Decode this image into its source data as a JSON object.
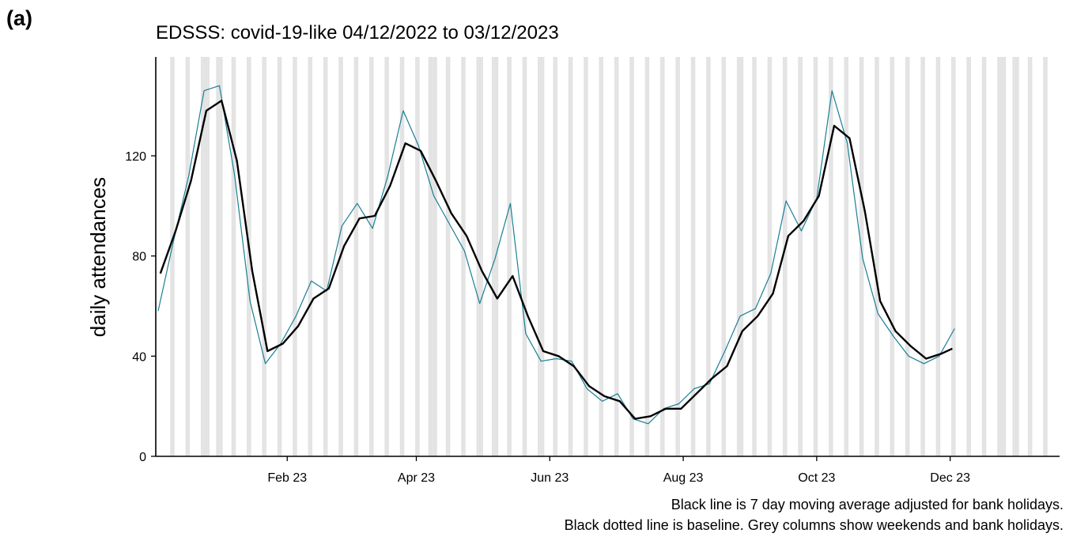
{
  "panel_label": "(a)",
  "chart_data": {
    "type": "line",
    "title": "EDSSS: covid-19-like 04/12/2022 to 03/12/2023",
    "xlabel": "",
    "ylabel": "daily attendances",
    "x_range": [
      "2022-12-04",
      "2024-01-20"
    ],
    "ylim": [
      0,
      150
    ],
    "y_ticks": [
      0,
      40,
      80,
      120
    ],
    "x_ticks": [
      {
        "date": "2023-02-01",
        "label": "Feb 23"
      },
      {
        "date": "2023-04-01",
        "label": "Apr 23"
      },
      {
        "date": "2023-06-01",
        "label": "Jun 23"
      },
      {
        "date": "2023-08-01",
        "label": "Aug 23"
      },
      {
        "date": "2023-10-01",
        "label": "Oct 23"
      },
      {
        "date": "2023-12-01",
        "label": "Dec 23"
      }
    ],
    "grid": false,
    "legend": "none",
    "weekend_columns": {
      "color": "#e3e3e3",
      "first_saturday": "2022-12-10",
      "last_sunday": "2024-01-14"
    },
    "bank_holidays": [
      "2022-12-26",
      "2022-12-27",
      "2023-01-02",
      "2023-04-07",
      "2023-04-10",
      "2023-05-01",
      "2023-05-08",
      "2023-05-29",
      "2023-08-28",
      "2023-12-25",
      "2023-12-26",
      "2024-01-01"
    ],
    "series": [
      {
        "style": "daily",
        "color": "#1a7f96",
        "x": [
          "2022-12-04",
          "2022-12-11",
          "2022-12-18",
          "2022-12-25",
          "2023-01-01",
          "2023-01-08",
          "2023-01-15",
          "2023-01-22",
          "2023-01-29",
          "2023-02-05",
          "2023-02-12",
          "2023-02-19",
          "2023-02-26",
          "2023-03-05",
          "2023-03-12",
          "2023-03-19",
          "2023-03-26",
          "2023-04-02",
          "2023-04-09",
          "2023-04-16",
          "2023-04-23",
          "2023-04-30",
          "2023-05-07",
          "2023-05-14",
          "2023-05-21",
          "2023-05-28",
          "2023-06-04",
          "2023-06-11",
          "2023-06-18",
          "2023-06-25",
          "2023-07-02",
          "2023-07-09",
          "2023-07-16",
          "2023-07-23",
          "2023-07-30",
          "2023-08-06",
          "2023-08-13",
          "2023-08-20",
          "2023-08-27",
          "2023-09-03",
          "2023-09-10",
          "2023-09-17",
          "2023-09-24",
          "2023-10-01",
          "2023-10-08",
          "2023-10-15",
          "2023-10-22",
          "2023-10-29",
          "2023-11-05",
          "2023-11-12",
          "2023-11-19",
          "2023-11-26",
          "2023-12-03"
        ],
        "y": [
          58,
          86,
          112,
          146,
          148,
          112,
          62,
          37,
          45,
          56,
          70,
          66,
          92,
          101,
          91,
          112,
          138,
          124,
          104,
          93,
          82,
          61,
          79,
          101,
          49,
          38,
          39,
          38,
          27,
          22,
          25,
          15,
          13,
          19,
          21,
          27,
          29,
          42,
          56,
          59,
          73,
          102,
          90,
          103,
          146,
          125,
          79,
          57,
          48,
          40,
          37,
          40,
          51
        ]
      },
      {
        "style": "7-day moving average",
        "color": "#000000",
        "x": [
          "2022-12-05",
          "2022-12-12",
          "2022-12-19",
          "2022-12-26",
          "2023-01-02",
          "2023-01-09",
          "2023-01-16",
          "2023-01-23",
          "2023-01-30",
          "2023-02-06",
          "2023-02-13",
          "2023-02-20",
          "2023-02-27",
          "2023-03-06",
          "2023-03-13",
          "2023-03-20",
          "2023-03-27",
          "2023-04-03",
          "2023-04-10",
          "2023-04-17",
          "2023-04-24",
          "2023-05-01",
          "2023-05-08",
          "2023-05-15",
          "2023-05-22",
          "2023-05-29",
          "2023-06-05",
          "2023-06-12",
          "2023-06-19",
          "2023-06-26",
          "2023-07-03",
          "2023-07-10",
          "2023-07-17",
          "2023-07-24",
          "2023-07-31",
          "2023-08-07",
          "2023-08-14",
          "2023-08-21",
          "2023-08-28",
          "2023-09-04",
          "2023-09-11",
          "2023-09-18",
          "2023-09-25",
          "2023-10-02",
          "2023-10-09",
          "2023-10-16",
          "2023-10-23",
          "2023-10-30",
          "2023-11-06",
          "2023-11-13",
          "2023-11-20",
          "2023-11-27",
          "2023-12-02"
        ],
        "y": [
          73,
          90,
          110,
          138,
          142,
          118,
          74,
          42,
          45,
          52,
          63,
          67,
          84,
          95,
          96,
          108,
          125,
          122,
          110,
          97,
          88,
          74,
          63,
          72,
          56,
          42,
          40,
          36,
          28,
          24,
          22,
          15,
          16,
          19,
          19,
          25,
          31,
          36,
          50,
          56,
          65,
          88,
          94,
          104,
          132,
          127,
          98,
          62,
          50,
          44,
          39,
          41,
          43
        ]
      }
    ]
  }
}
